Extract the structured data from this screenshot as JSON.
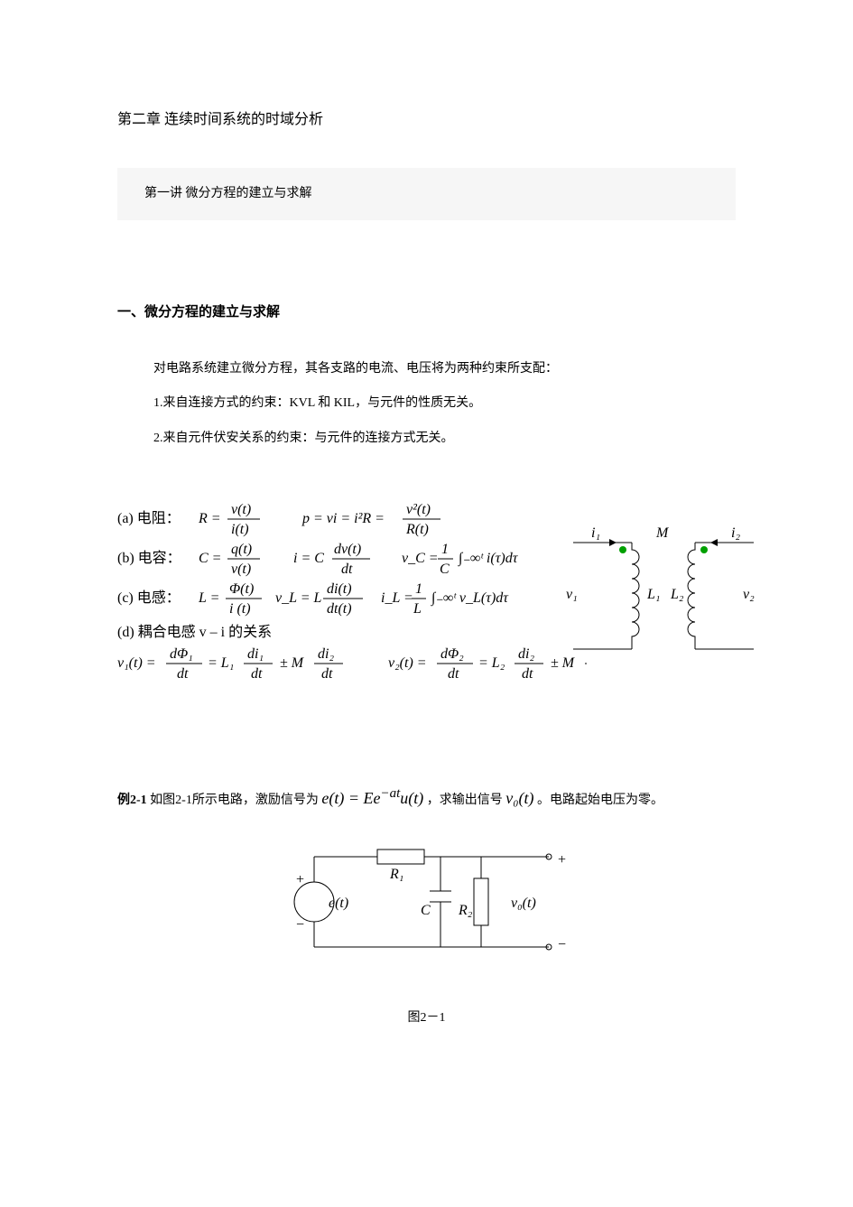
{
  "chapter_title": "第二章  连续时间系统的时域分析",
  "lecture_title": "第一讲 微分方程的建立与求解",
  "section1": {
    "heading": "一、微分方程的建立与求解",
    "para_intro": "对电路系统建立微分方程，其各支路的电流、电压将为两种约束所支配：",
    "para_rule1": "1.来自连接方式的约束：KVL 和 KIL，与元件的性质无关。",
    "para_rule2": "2.来自元件伏安关系的约束：与元件的连接方式无关。"
  },
  "formulas": {
    "a_label": "(a) 电阻：",
    "a_eq1_lhs": "R =",
    "a_eq1_num": "v(t)",
    "a_eq1_den": "i(t)",
    "a_eq2": "p = vi = i²R =",
    "a_eq2_num": "v²(t)",
    "a_eq2_den": "R(t)",
    "b_label": "(b) 电容：",
    "b_eq1_lhs": "C =",
    "b_eq1_num": "q(t)",
    "b_eq1_den": "v(t)",
    "b_eq2_lhs": "i = C",
    "b_eq2_num": "dv(t)",
    "b_eq2_den": "dt",
    "b_eq3_lhs": "v_C =",
    "b_eq3_num": "1",
    "b_eq3_den": "C",
    "b_eq3_int": "∫₋∞ᵗ i(τ)dτ",
    "c_label": "(c) 电感：",
    "c_eq1_lhs": "L =",
    "c_eq1_num": "Φ(t)",
    "c_eq1_den": "i (t)",
    "c_eq2_lhs": "v_L = L",
    "c_eq2_num": "di(t)",
    "c_eq2_den": "dt(t)",
    "c_eq3_lhs": "i_L =",
    "c_eq3_num": "1",
    "c_eq3_den": "L",
    "c_eq3_int": "∫₋∞ᵗ v_L(τ)dτ",
    "d_label": "(d) 耦合电感 v – i 的关系",
    "d_eq1_lhs": "v₁(t) =",
    "d_eq1_f1n": "dΦ₁",
    "d_eq1_f1d": "dt",
    "d_eq1_m": "= L₁",
    "d_eq1_f2n": "di₁",
    "d_eq1_f2d": "dt",
    "d_eq1_pm": "± M",
    "d_eq1_f3n": "di₂",
    "d_eq1_f3d": "dt",
    "d_eq2_lhs": "v₂(t) =",
    "d_eq2_f1n": "dΦ₂",
    "d_eq2_f1d": "dt",
    "d_eq2_m": "= L₂",
    "d_eq2_f2n": "di₂",
    "d_eq2_f2d": "dt",
    "d_eq2_pm": "± M",
    "d_eq2_f3n": "d",
    "d_eq2_f3d": "d"
  },
  "coupling_diagram": {
    "stroke": "#000000",
    "dot_color": "#00a000",
    "labels": {
      "i1": "i₁",
      "i2": "i₂",
      "M": "M",
      "v1": "v₁",
      "v2": "v₂",
      "L1": "L₁",
      "L2": "L₂"
    }
  },
  "example": {
    "label": "例2-1",
    "pre_text": "如图2-1所示电路，激励信号为",
    "eq_html": "e(t) = Ee<sup>−at</sup>u(t)",
    "mid_text": "，求输出信号",
    "out_sig": "v₀(t)",
    "post_text": "。电路起始电压为零。"
  },
  "circuit": {
    "stroke": "#000000",
    "labels": {
      "R1": "R₁",
      "R2": "R₂",
      "C": "C",
      "e": "e(t)",
      "vo": "v₀(t)",
      "plus": "+",
      "minus": "−"
    }
  },
  "figure_caption": "图2－1"
}
